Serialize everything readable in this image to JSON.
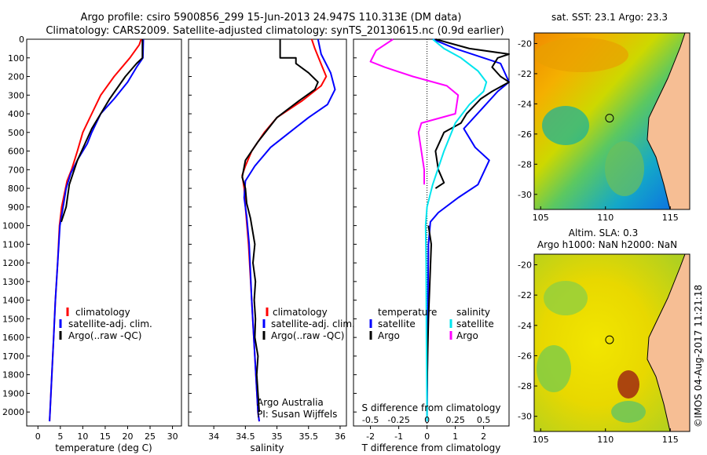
{
  "header": {
    "line1": "Argo profile: csiro 5900856_299 15-Jun-2013 24.947S 110.313E (DM data)",
    "line2": "Climatology: CARS2009. Satellite-adjusted climatology: synTS_20130615.nc (0.9d earlier)"
  },
  "colors": {
    "climatology": "#ff0000",
    "satellite": "#0000ff",
    "argo": "#000000",
    "argo_salinity_diff": "#ff00ff",
    "satellite_salinity_diff": "#00e5ee",
    "land": "#f6be94"
  },
  "footer_credit": "©IMOS 04-Aug-2017 11:21:18",
  "chart_data": [
    {
      "id": "temperature",
      "type": "line",
      "xlabel": "temperature (deg C)",
      "xlim": [
        -2.5,
        32
      ],
      "xticks": [
        0,
        5,
        10,
        15,
        20,
        25,
        30
      ],
      "ylim": [
        2075,
        0
      ],
      "yticks": [
        0,
        100,
        200,
        300,
        400,
        500,
        600,
        700,
        800,
        900,
        1000,
        1100,
        1200,
        1300,
        1400,
        1500,
        1600,
        1700,
        1800,
        1900,
        2000
      ],
      "legend": [
        "climatology",
        "satellite-adj. clim.",
        "Argo(..raw -QC)"
      ],
      "series": [
        {
          "name": "climatology",
          "color": "#ff0000",
          "points": [
            [
              23,
              0
            ],
            [
              22.6,
              30
            ],
            [
              20.5,
              100
            ],
            [
              17,
              200
            ],
            [
              14,
              300
            ],
            [
              12,
              400
            ],
            [
              10,
              500
            ],
            [
              8.8,
              600
            ],
            [
              7.5,
              700
            ],
            [
              6.5,
              760
            ],
            [
              5.3,
              900
            ],
            [
              4.8,
              1000
            ],
            [
              4.4,
              1200
            ],
            [
              3.9,
              1400
            ],
            [
              3.5,
              1600
            ],
            [
              3.1,
              1800
            ],
            [
              2.7,
              2000
            ],
            [
              2.6,
              2050
            ]
          ]
        },
        {
          "name": "satellite-adj. clim.",
          "color": "#0000ff",
          "points": [
            [
              23.5,
              0
            ],
            [
              23.4,
              100
            ],
            [
              22,
              150
            ],
            [
              20,
              230
            ],
            [
              17,
              320
            ],
            [
              14,
              400
            ],
            [
              12,
              500
            ],
            [
              11,
              560
            ],
            [
              9,
              640
            ],
            [
              7.3,
              720
            ],
            [
              6.3,
              800
            ],
            [
              5.6,
              900
            ],
            [
              4.9,
              1000
            ],
            [
              4.4,
              1200
            ],
            [
              3.9,
              1400
            ],
            [
              3.5,
              1600
            ],
            [
              3.1,
              1800
            ],
            [
              2.7,
              2000
            ],
            [
              2.6,
              2050
            ]
          ]
        },
        {
          "name": "Argo(..raw -QC)",
          "color": "#000000",
          "points": [
            [
              23.3,
              0
            ],
            [
              23.3,
              100
            ],
            [
              22,
              130
            ],
            [
              19.5,
              200
            ],
            [
              16,
              320
            ],
            [
              14,
              400
            ],
            [
              12,
              480
            ],
            [
              10.5,
              560
            ],
            [
              8.8,
              650
            ],
            [
              7,
              780
            ],
            [
              6.3,
              900
            ],
            [
              5.2,
              980
            ]
          ]
        }
      ]
    },
    {
      "id": "salinity",
      "type": "line",
      "xlabel": "salinity",
      "xlim": [
        33.6,
        36.1
      ],
      "xticks": [
        34,
        34.5,
        35,
        35.5,
        36
      ],
      "ylim": [
        2075,
        0
      ],
      "legend": [
        "climatology",
        "satellite-adj. clim.",
        "Argo(..raw -QC)"
      ],
      "annotation": [
        "Argo Australia",
        "PI: Susan Wijffels"
      ],
      "series": [
        {
          "name": "climatology",
          "color": "#ff0000",
          "points": [
            [
              35.55,
              0
            ],
            [
              35.6,
              50
            ],
            [
              35.72,
              150
            ],
            [
              35.78,
              200
            ],
            [
              35.7,
              250
            ],
            [
              35.4,
              330
            ],
            [
              35,
              420
            ],
            [
              34.8,
              500
            ],
            [
              34.6,
              600
            ],
            [
              34.5,
              680
            ],
            [
              34.45,
              730
            ],
            [
              34.48,
              800
            ],
            [
              34.5,
              900
            ],
            [
              34.55,
              1100
            ],
            [
              34.6,
              1400
            ],
            [
              34.65,
              1700
            ],
            [
              34.7,
              2000
            ],
            [
              34.72,
              2050
            ]
          ]
        },
        {
          "name": "satellite-adj. clim.",
          "color": "#0000ff",
          "points": [
            [
              35.65,
              0
            ],
            [
              35.7,
              80
            ],
            [
              35.85,
              180
            ],
            [
              35.92,
              270
            ],
            [
              35.8,
              350
            ],
            [
              35.5,
              420
            ],
            [
              35.2,
              500
            ],
            [
              34.9,
              580
            ],
            [
              34.65,
              680
            ],
            [
              34.5,
              760
            ],
            [
              34.48,
              850
            ],
            [
              34.52,
              950
            ],
            [
              34.56,
              1100
            ],
            [
              34.6,
              1400
            ],
            [
              34.65,
              1700
            ],
            [
              34.7,
              2000
            ],
            [
              34.72,
              2050
            ]
          ]
        },
        {
          "name": "Argo(..raw -QC)",
          "color": "#000000",
          "points": [
            [
              35.05,
              0
            ],
            [
              35.05,
              100
            ],
            [
              35.3,
              100
            ],
            [
              35.3,
              130
            ],
            [
              35.5,
              180
            ],
            [
              35.65,
              230
            ],
            [
              35.6,
              270
            ],
            [
              35.35,
              330
            ],
            [
              35,
              420
            ],
            [
              34.7,
              550
            ],
            [
              34.5,
              650
            ],
            [
              34.45,
              740
            ],
            [
              34.5,
              800
            ],
            [
              34.52,
              880
            ],
            [
              34.58,
              960
            ],
            [
              34.6,
              1000
            ],
            [
              34.65,
              1100
            ],
            [
              34.62,
              1200
            ],
            [
              34.66,
              1300
            ],
            [
              34.64,
              1400
            ],
            [
              34.66,
              1500
            ],
            [
              34.65,
              1600
            ],
            [
              34.7,
              1700
            ],
            [
              34.68,
              1800
            ],
            [
              34.7,
              1900
            ],
            [
              34.72,
              2000
            ]
          ]
        }
      ]
    },
    {
      "id": "difference",
      "type": "line",
      "xlabel": "T difference from climatology",
      "xlabel_top": "S difference from climatology",
      "xlim": [
        -2.6,
        2.9
      ],
      "xticks": [
        -2,
        -1,
        0,
        1,
        2
      ],
      "xticks_top": [
        "-0.5",
        "-0.25",
        "0",
        "0.25",
        "0.5"
      ],
      "xticks_top_pos": [
        -2,
        -1,
        0,
        1,
        2
      ],
      "ylim": [
        2075,
        0
      ],
      "legend": [
        "temperature",
        "satellite",
        "Argo",
        "salinity",
        "satellite",
        "Argo"
      ],
      "series": [
        {
          "name": "T satellite",
          "color": "#0000ff",
          "points": [
            [
              0.2,
              0
            ],
            [
              1,
              50
            ],
            [
              2,
              100
            ],
            [
              2.6,
              130
            ],
            [
              2.9,
              230
            ],
            [
              2.5,
              280
            ],
            [
              1.9,
              380
            ],
            [
              1.3,
              480
            ],
            [
              1.7,
              580
            ],
            [
              2.2,
              650
            ],
            [
              1.8,
              780
            ],
            [
              1.1,
              850
            ],
            [
              0.4,
              930
            ],
            [
              0.12,
              980
            ],
            [
              0.05,
              1100
            ],
            [
              0.03,
              1400
            ],
            [
              0.01,
              1800
            ],
            [
              0,
              2000
            ],
            [
              0,
              2050
            ]
          ]
        },
        {
          "name": "T Argo",
          "color": "#000000",
          "points": [
            [
              0.3,
              0
            ],
            [
              1.5,
              50
            ],
            [
              2.9,
              80
            ],
            [
              2.5,
              100
            ],
            [
              2.3,
              150
            ],
            [
              2.6,
              200
            ],
            [
              2.9,
              230
            ],
            [
              2.3,
              280
            ],
            [
              1.9,
              320
            ],
            [
              1.4,
              400
            ],
            [
              1.2,
              450
            ],
            [
              0.6,
              500
            ],
            [
              0.3,
              600
            ],
            [
              0.4,
              700
            ],
            [
              0.6,
              770
            ],
            [
              0.3,
              800
            ]
          ]
        },
        {
          "name": "T Argo deep",
          "color": "#000000",
          "points": [
            [
              0.05,
              1000
            ],
            [
              0.15,
              1100
            ],
            [
              0.1,
              1300
            ],
            [
              0.05,
              1500
            ],
            [
              0.02,
              1700
            ],
            [
              0,
              1900
            ],
            [
              0,
              2000
            ]
          ]
        },
        {
          "name": "S satellite",
          "color": "#00e5ee",
          "points": [
            [
              0.2,
              0
            ],
            [
              0.6,
              50
            ],
            [
              1.2,
              100
            ],
            [
              1.8,
              170
            ],
            [
              2.1,
              230
            ],
            [
              2,
              280
            ],
            [
              1.5,
              350
            ],
            [
              1,
              450
            ],
            [
              0.6,
              600
            ],
            [
              0.2,
              780
            ],
            [
              0,
              900
            ],
            [
              -0.05,
              1000
            ],
            [
              -0.03,
              1200
            ],
            [
              -0.02,
              1600
            ],
            [
              0,
              2000
            ],
            [
              0,
              2050
            ]
          ]
        },
        {
          "name": "S Argo",
          "color": "#ff00ff",
          "points": [
            [
              -1.2,
              0
            ],
            [
              -1.8,
              60
            ],
            [
              -2,
              120
            ],
            [
              -1.5,
              150
            ],
            [
              -0.5,
              200
            ],
            [
              0.7,
              250
            ],
            [
              1.1,
              300
            ],
            [
              1,
              400
            ],
            [
              -0.2,
              450
            ],
            [
              -0.3,
              500
            ],
            [
              -0.2,
              600
            ],
            [
              -0.1,
              700
            ],
            [
              -0.1,
              780
            ]
          ]
        }
      ]
    },
    {
      "id": "sst-map",
      "type": "heatmap",
      "title": "sat. SST: 23.1  Argo: 23.3",
      "xticks": [
        105,
        110,
        115
      ],
      "yticks": [
        -20,
        -22,
        -24,
        -26,
        -28,
        -30
      ],
      "xlim": [
        104.5,
        116.5
      ],
      "ylim": [
        -31,
        -19.3
      ],
      "argo_position": [
        110.313,
        -24.947
      ]
    },
    {
      "id": "sla-map",
      "type": "heatmap",
      "title": "Altim. SLA: 0.3",
      "subtitle": "Argo h1000: NaN h2000: NaN",
      "xticks": [
        105,
        110,
        115
      ],
      "yticks": [
        -20,
        -22,
        -24,
        -26,
        -28,
        -30
      ],
      "xlim": [
        104.5,
        116.5
      ],
      "ylim": [
        -31,
        -19.3
      ],
      "argo_position": [
        110.313,
        -24.947
      ]
    }
  ]
}
